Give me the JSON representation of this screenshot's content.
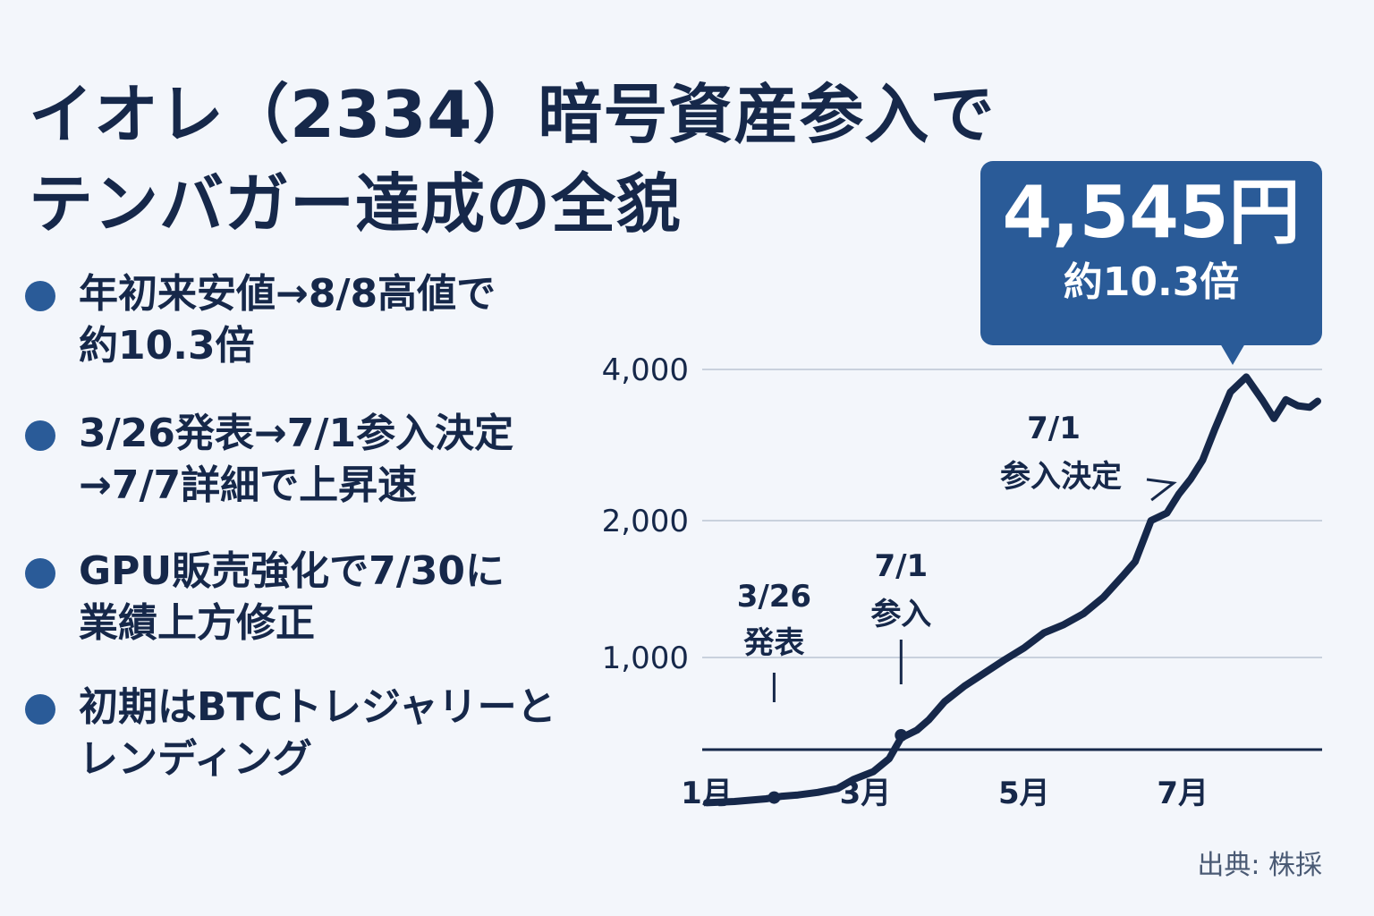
{
  "title": {
    "line1": "イオレ（2334）暗号資産参入で",
    "line2": "テンバガー達成の全貌"
  },
  "bullets": [
    {
      "lines": [
        "年初来安値→8/8高値で",
        "約10.3倍"
      ]
    },
    {
      "lines": [
        "3/26発表→7/1参入決定",
        "→7/7詳細で上昇速"
      ]
    },
    {
      "lines": [
        "GPU販売強化で7/30に",
        "業績上方修正"
      ]
    },
    {
      "lines": [
        "初期はBTCトレジャリーと",
        "レンディング"
      ]
    }
  ],
  "callout": {
    "price": "4,545円",
    "ratio": "約10.3倍"
  },
  "source": "出典: 株採",
  "colors": {
    "accent": "#2a5b98",
    "line": "#16284a",
    "background": "#f3f6fb"
  },
  "chart_data": {
    "type": "line",
    "y_ticks": [
      {
        "value": 1000,
        "label": "1,000"
      },
      {
        "value": 2000,
        "label": "2,000"
      },
      {
        "value": 4000,
        "label": "4,000"
      }
    ],
    "x_ticks": [
      {
        "month": 1,
        "label": "1月"
      },
      {
        "month": 3,
        "label": "3月"
      },
      {
        "month": 5,
        "label": "5月"
      },
      {
        "month": 7,
        "label": "7月"
      }
    ],
    "grid": true,
    "series": [
      {
        "points": [
          [
            1.0,
            440
          ],
          [
            1.35,
            445
          ],
          [
            1.55,
            450
          ],
          [
            1.75,
            455
          ],
          [
            1.95,
            465
          ],
          [
            2.15,
            470
          ],
          [
            2.4,
            480
          ],
          [
            2.65,
            495
          ],
          [
            2.85,
            530
          ],
          [
            3.1,
            560
          ],
          [
            3.3,
            610
          ],
          [
            3.45,
            690
          ],
          [
            3.65,
            720
          ],
          [
            3.8,
            760
          ],
          [
            4.0,
            830
          ],
          [
            4.25,
            890
          ],
          [
            4.5,
            940
          ],
          [
            4.75,
            990
          ],
          [
            5.0,
            1070
          ],
          [
            5.25,
            1180
          ],
          [
            5.5,
            1240
          ],
          [
            5.75,
            1320
          ],
          [
            6.0,
            1440
          ],
          [
            6.25,
            1600
          ],
          [
            6.4,
            1700
          ],
          [
            6.6,
            2000
          ],
          [
            6.8,
            2100
          ],
          [
            6.95,
            2350
          ],
          [
            7.1,
            2550
          ],
          [
            7.25,
            2800
          ],
          [
            7.4,
            3200
          ],
          [
            7.6,
            3700
          ],
          [
            7.8,
            3900
          ],
          [
            8.0,
            3600
          ],
          [
            8.15,
            3350
          ],
          [
            8.3,
            3600
          ],
          [
            8.45,
            3520
          ],
          [
            8.6,
            3500
          ],
          [
            8.7,
            3580
          ]
        ]
      }
    ],
    "annotations": [
      {
        "lines": [
          "3/26",
          "発表"
        ],
        "x": 1.85,
        "y": 460
      },
      {
        "lines": [
          "7/1",
          "参入"
        ],
        "x": 3.45,
        "y": 700
      },
      {
        "lines": [
          "7/1",
          "参入決定"
        ],
        "x": 6.65,
        "y": 2200
      }
    ]
  }
}
